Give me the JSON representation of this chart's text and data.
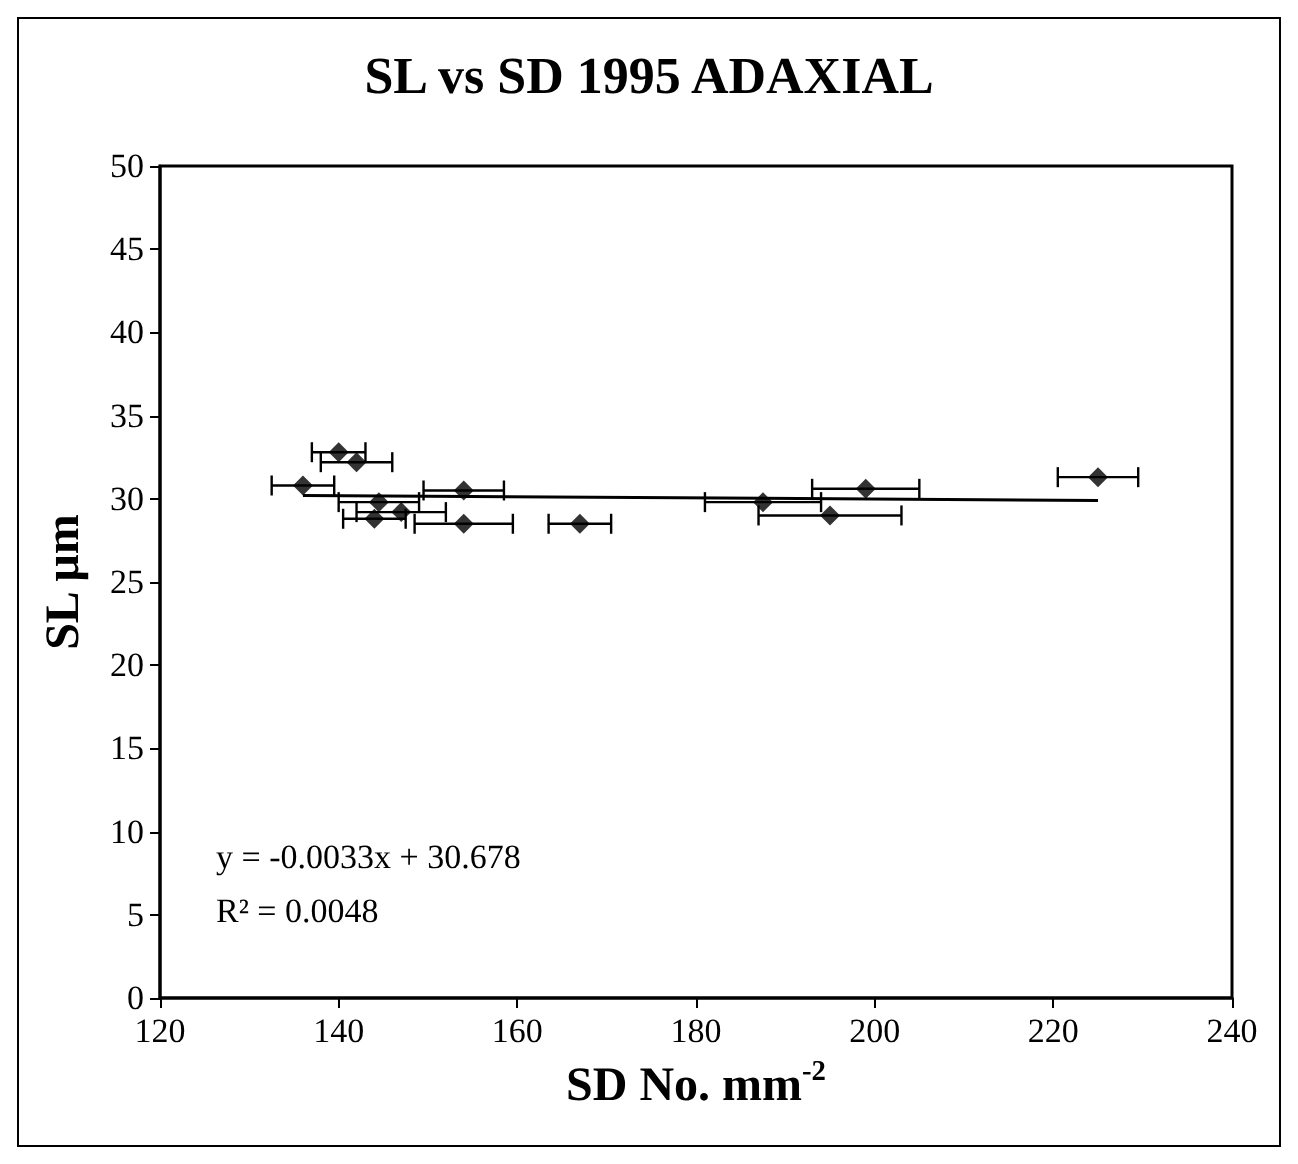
{
  "chart_data": {
    "type": "scatter",
    "title": "SL vs SD 1995 ADAXIAL",
    "xlabel": "SD No. mm$^{-2}$",
    "ylabel": "SL µm",
    "x": [
      136,
      140,
      142,
      144.5,
      144,
      147,
      154,
      154,
      167,
      187.5,
      195,
      199,
      225
    ],
    "series": [
      {
        "color": "#000000",
        "values": [
          30.8,
          32.8,
          32.2,
          29.8,
          28.8,
          29.2,
          30.5,
          28.5,
          28.5,
          29.8,
          29.0,
          30.6,
          31.3
        ],
        "xerrors": [
          3.5,
          3,
          4,
          4.5,
          3.5,
          5,
          4.5,
          5.5,
          3.5,
          6.5,
          8,
          6,
          4.5
        ]
      },
      {
        "type": "line",
        "color": "#000000",
        "marker": "none",
        "x": [
          136,
          225
        ],
        "values": [
          30.2,
          29.9
        ]
      }
    ],
    "xlim": [
      120,
      240
    ],
    "xticks": [
      120,
      140,
      160,
      180,
      200,
      220,
      240
    ],
    "ylim": [
      0,
      50
    ],
    "yticks": [
      0,
      5,
      10,
      15,
      20,
      25,
      30,
      35,
      40,
      45,
      50
    ],
    "marker": "diamond",
    "grid": false,
    "annotations": [
      "y = -0.0033x + 30.678",
      "R² = 0.0048"
    ]
  }
}
